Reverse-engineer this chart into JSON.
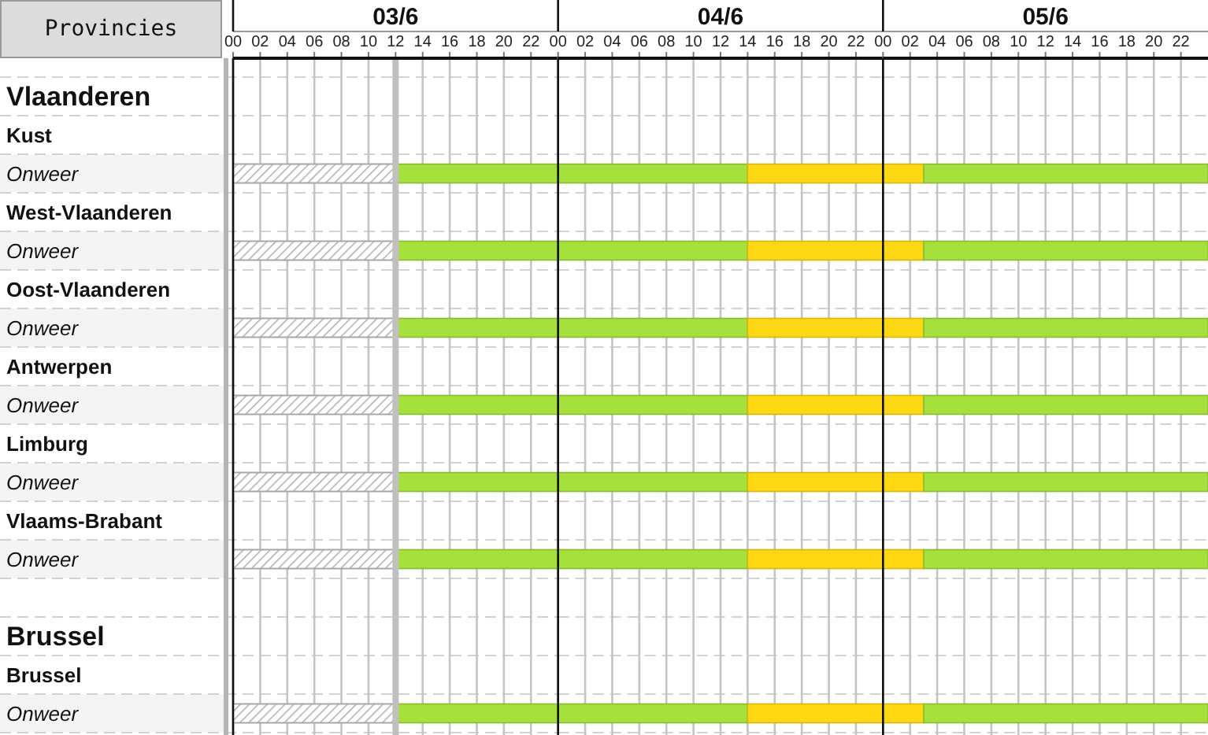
{
  "chart_data": [
    {
      "type": "bar",
      "orientation": "horizontal",
      "stacked": true,
      "title": "03/6",
      "ylabel": "Provincies",
      "categories": [
        "Vlaanderen",
        "Kust",
        "Onweer",
        "West-Vlaanderen",
        "Onweer",
        "Oost-Vlaanderen",
        "Onweer",
        "Antwerpen",
        "Onweer",
        "Limburg",
        "Onweer",
        "Vlaams-Brabant",
        "Onweer",
        null,
        "Brussel",
        "Brussel",
        "Onweer"
      ],
      "series": [
        {
          "color": "#a8a8a8",
          "values": [
            null,
            null,
            12,
            null,
            12,
            null,
            12,
            null,
            12,
            null,
            12,
            null,
            12,
            null,
            null,
            null,
            12
          ]
        },
        {
          "color": "#a6e03c",
          "values": [
            null,
            null,
            12,
            null,
            12,
            null,
            12,
            null,
            12,
            null,
            12,
            null,
            12,
            null,
            null,
            null,
            12
          ]
        }
      ],
      "xlim": [
        0,
        24
      ],
      "xticks": [
        {
          "value": 0,
          "label": "00"
        },
        {
          "value": 2,
          "label": "02"
        },
        {
          "value": 4,
          "label": "04"
        },
        {
          "value": 6,
          "label": "06"
        },
        {
          "value": 8,
          "label": "08"
        },
        10,
        12,
        14,
        16,
        18,
        20,
        22
      ],
      "grid": true,
      "ref_lines": [
        {
          "axis": "x",
          "value": 12,
          "color": "#c0c0c0"
        }
      ]
    },
    {
      "type": "bar",
      "orientation": "horizontal",
      "stacked": true,
      "title": "04/6",
      "tick_labels": "x",
      "categories": [
        null,
        null,
        null,
        null,
        null,
        null,
        null,
        null,
        null,
        null,
        null,
        null,
        null,
        null,
        null,
        null,
        null
      ],
      "series": [
        {
          "color": "#a6e03c",
          "values": [
            null,
            null,
            14,
            null,
            14,
            null,
            14,
            null,
            14,
            null,
            14,
            null,
            14,
            null,
            null,
            null,
            14
          ]
        },
        {
          "color": "#ffd814",
          "values": [
            null,
            null,
            10,
            null,
            10,
            null,
            10,
            null,
            10,
            null,
            10,
            null,
            10,
            null,
            null,
            null,
            10
          ]
        }
      ],
      "xlim": [
        0,
        24
      ],
      "xticks": [
        {
          "value": 0,
          "label": "00"
        },
        {
          "value": 2,
          "label": "02"
        },
        {
          "value": 4,
          "label": "04"
        },
        {
          "value": 6,
          "label": "06"
        },
        {
          "value": 8,
          "label": "08"
        },
        10,
        12,
        14,
        16,
        18,
        20,
        22
      ],
      "grid": true
    },
    {
      "type": "bar",
      "orientation": "horizontal",
      "stacked": true,
      "title": "05/6",
      "tick_labels": "x",
      "categories": [
        null,
        null,
        null,
        null,
        null,
        null,
        null,
        null,
        null,
        null,
        null,
        null,
        null,
        null,
        null,
        null,
        null
      ],
      "series": [
        {
          "color": "#ffd814",
          "values": [
            null,
            null,
            3,
            null,
            3,
            null,
            3,
            null,
            3,
            null,
            3,
            null,
            3,
            null,
            null,
            null,
            3
          ]
        },
        {
          "color": "#a6e03c",
          "values": [
            null,
            null,
            21,
            null,
            21,
            null,
            21,
            null,
            21,
            null,
            21,
            null,
            21,
            null,
            null,
            null,
            21
          ]
        }
      ],
      "xlim": [
        0,
        24
      ],
      "xticks": [
        {
          "value": 0,
          "label": "00"
        },
        {
          "value": 2,
          "label": "02"
        },
        {
          "value": 4,
          "label": "04"
        },
        {
          "value": 6,
          "label": "06"
        },
        {
          "value": 8,
          "label": "08"
        },
        10,
        12,
        14,
        16,
        18,
        20,
        22
      ],
      "grid": true
    }
  ]
}
